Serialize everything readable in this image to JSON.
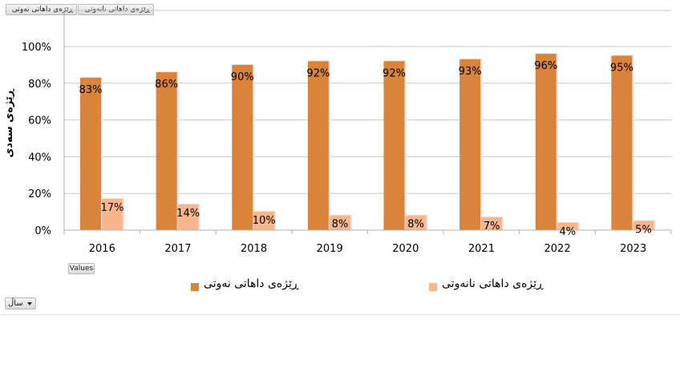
{
  "field_buttons": [
    {
      "label": "ڕێژەی داهاتی نەوتی"
    },
    {
      "label": "ڕێژەی داهاتی نانەوتی"
    }
  ],
  "values_button": {
    "label": "Values"
  },
  "axis_field": {
    "label": "ساڵ"
  },
  "chart_data": {
    "type": "bar",
    "categories": [
      "2016",
      "2017",
      "2018",
      "2019",
      "2020",
      "2021",
      "2022",
      "2023"
    ],
    "series": [
      {
        "name": "ڕێژەی داهاتی نەوتی",
        "values": [
          83,
          86,
          90,
          92,
          92,
          93,
          96,
          95
        ],
        "labels": [
          "83%",
          "86%",
          "90%",
          "92%",
          "92%",
          "93%",
          "96%",
          "95%"
        ],
        "color": "#d9833b"
      },
      {
        "name": "ڕێژەی داهاتی نانەوتی",
        "values": [
          17,
          14,
          10,
          8,
          8,
          7,
          4,
          5
        ],
        "labels": [
          "17%",
          "14%",
          "10%",
          "8%",
          "8%",
          "7%",
          "4%",
          "5%"
        ],
        "color": "#f7b68e"
      }
    ],
    "ylabel": "ڕێژەی سەدی",
    "ylim": [
      0,
      100
    ],
    "yticks": [
      "0%",
      "20%",
      "40%",
      "60%",
      "80%",
      "100%"
    ],
    "grid": true,
    "legend": "bottom"
  }
}
